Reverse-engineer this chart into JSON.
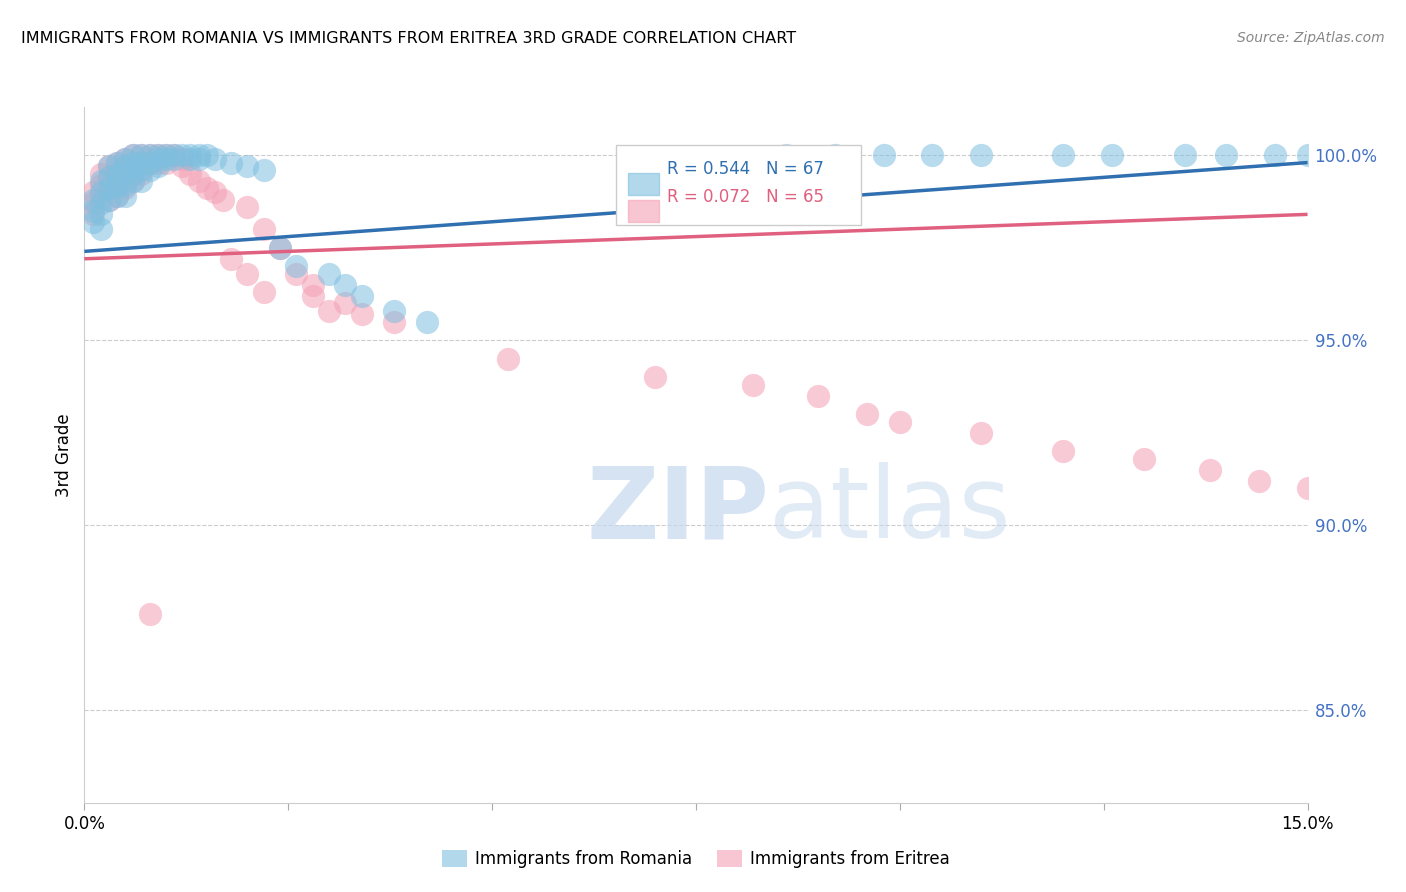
{
  "title": "IMMIGRANTS FROM ROMANIA VS IMMIGRANTS FROM ERITREA 3RD GRADE CORRELATION CHART",
  "source": "Source: ZipAtlas.com",
  "ylabel": "3rd Grade",
  "yticks": [
    0.85,
    0.9,
    0.95,
    1.0
  ],
  "ytick_labels": [
    "85.0%",
    "90.0%",
    "95.0%",
    "100.0%"
  ],
  "xrange": [
    0.0,
    0.15
  ],
  "yrange": [
    0.825,
    1.013
  ],
  "romania_R": 0.544,
  "romania_N": 67,
  "eritrea_R": 0.072,
  "eritrea_N": 65,
  "romania_color": "#7fbfdf",
  "eritrea_color": "#f4a0b5",
  "romania_line_color": "#3070b0",
  "eritrea_line_color": "#e06080",
  "legend_label_romania": "Immigrants from Romania",
  "legend_label_eritrea": "Immigrants from Eritrea",
  "romania_line_x0": 0.0,
  "romania_line_y0": 0.974,
  "romania_line_x1": 0.15,
  "romania_line_y1": 0.998,
  "eritrea_line_x0": 0.0,
  "eritrea_line_y0": 0.972,
  "eritrea_line_x1": 0.15,
  "eritrea_line_y1": 0.984,
  "romania_x": [
    0.001,
    0.001,
    0.001,
    0.002,
    0.002,
    0.002,
    0.002,
    0.002,
    0.003,
    0.003,
    0.003,
    0.003,
    0.004,
    0.004,
    0.004,
    0.004,
    0.005,
    0.005,
    0.005,
    0.005,
    0.005,
    0.006,
    0.006,
    0.006,
    0.006,
    0.007,
    0.007,
    0.007,
    0.007,
    0.008,
    0.008,
    0.008,
    0.009,
    0.009,
    0.009,
    0.01,
    0.01,
    0.011,
    0.011,
    0.012,
    0.013,
    0.013,
    0.014,
    0.014,
    0.015,
    0.016,
    0.018,
    0.02,
    0.022,
    0.024,
    0.026,
    0.03,
    0.032,
    0.034,
    0.038,
    0.042,
    0.086,
    0.092,
    0.098,
    0.104,
    0.11,
    0.12,
    0.126,
    0.135,
    0.14,
    0.146,
    0.15
  ],
  "romania_y": [
    0.988,
    0.985,
    0.982,
    0.993,
    0.99,
    0.987,
    0.984,
    0.98,
    0.997,
    0.994,
    0.991,
    0.988,
    0.998,
    0.995,
    0.992,
    0.989,
    0.999,
    0.997,
    0.995,
    0.992,
    0.989,
    1.0,
    0.998,
    0.995,
    0.993,
    1.0,
    0.998,
    0.996,
    0.993,
    1.0,
    0.998,
    0.996,
    1.0,
    0.999,
    0.997,
    1.0,
    0.999,
    1.0,
    0.999,
    1.0,
    1.0,
    0.999,
    1.0,
    0.999,
    1.0,
    0.999,
    0.998,
    0.997,
    0.996,
    0.975,
    0.97,
    0.968,
    0.965,
    0.962,
    0.958,
    0.955,
    1.0,
    1.0,
    1.0,
    1.0,
    1.0,
    1.0,
    1.0,
    1.0,
    1.0,
    1.0,
    1.0
  ],
  "eritrea_x": [
    0.001,
    0.001,
    0.001,
    0.002,
    0.002,
    0.002,
    0.003,
    0.003,
    0.003,
    0.003,
    0.004,
    0.004,
    0.004,
    0.004,
    0.005,
    0.005,
    0.005,
    0.005,
    0.006,
    0.006,
    0.006,
    0.006,
    0.007,
    0.007,
    0.007,
    0.008,
    0.008,
    0.009,
    0.009,
    0.01,
    0.01,
    0.011,
    0.012,
    0.012,
    0.013,
    0.014,
    0.015,
    0.016,
    0.017,
    0.02,
    0.022,
    0.024,
    0.026,
    0.028,
    0.028,
    0.03,
    0.032,
    0.034,
    0.038,
    0.052,
    0.07,
    0.082,
    0.09,
    0.096,
    0.1,
    0.11,
    0.12,
    0.13,
    0.138,
    0.144,
    0.15,
    0.018,
    0.02,
    0.022,
    0.008
  ],
  "eritrea_y": [
    0.99,
    0.987,
    0.984,
    0.995,
    0.992,
    0.989,
    0.997,
    0.994,
    0.991,
    0.988,
    0.998,
    0.995,
    0.992,
    0.989,
    0.999,
    0.997,
    0.994,
    0.991,
    1.0,
    0.998,
    0.995,
    0.993,
    1.0,
    0.998,
    0.995,
    1.0,
    0.998,
    1.0,
    0.998,
    1.0,
    0.998,
    1.0,
    0.999,
    0.997,
    0.995,
    0.993,
    0.991,
    0.99,
    0.988,
    0.986,
    0.98,
    0.975,
    0.968,
    0.965,
    0.962,
    0.958,
    0.96,
    0.957,
    0.955,
    0.945,
    0.94,
    0.938,
    0.935,
    0.93,
    0.928,
    0.925,
    0.92,
    0.918,
    0.915,
    0.912,
    0.91,
    0.972,
    0.968,
    0.963,
    0.876
  ]
}
